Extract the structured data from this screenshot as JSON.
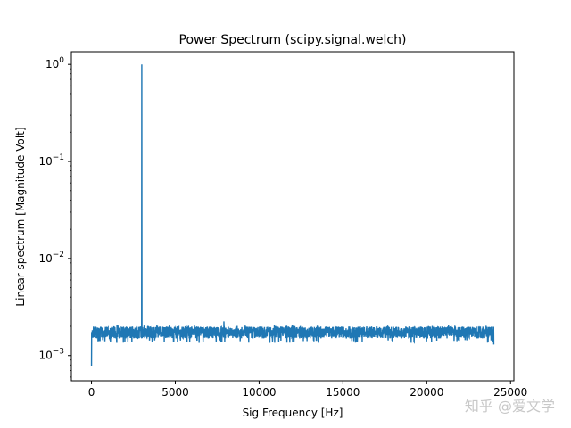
{
  "watermark": "知乎 @爱文学",
  "chart_data": {
    "type": "line",
    "title": "Power Spectrum (scipy.signal.welch)",
    "xlabel": "Sig Frequency [Hz]",
    "ylabel": "Linear spectrum [Magnitude Volt]",
    "xlim": [
      -1200,
      25200
    ],
    "ylim": [
      0.00055,
      1.35
    ],
    "yscale": "log",
    "xticks": [
      0,
      5000,
      10000,
      15000,
      20000,
      25000
    ],
    "xtick_labels": [
      "0",
      "5000",
      "10000",
      "15000",
      "20000",
      "25000"
    ],
    "yticks": [
      0.001,
      0.01,
      0.1,
      1
    ],
    "ytick_exponents": [
      "−3",
      "−2",
      "−1",
      "0"
    ],
    "grid": false,
    "color": "#1f77b4",
    "series": [
      {
        "x_range": [
          0,
          24000
        ],
        "baseline_mean": 0.00175,
        "baseline_min": 0.00135,
        "baseline_max": 0.00205,
        "dc_value": 0.00078,
        "last_value": 0.0013,
        "peaks": [
          {
            "x": 3000,
            "value": 1.0
          },
          {
            "x": 7900,
            "value": 0.00225
          }
        ]
      }
    ]
  }
}
